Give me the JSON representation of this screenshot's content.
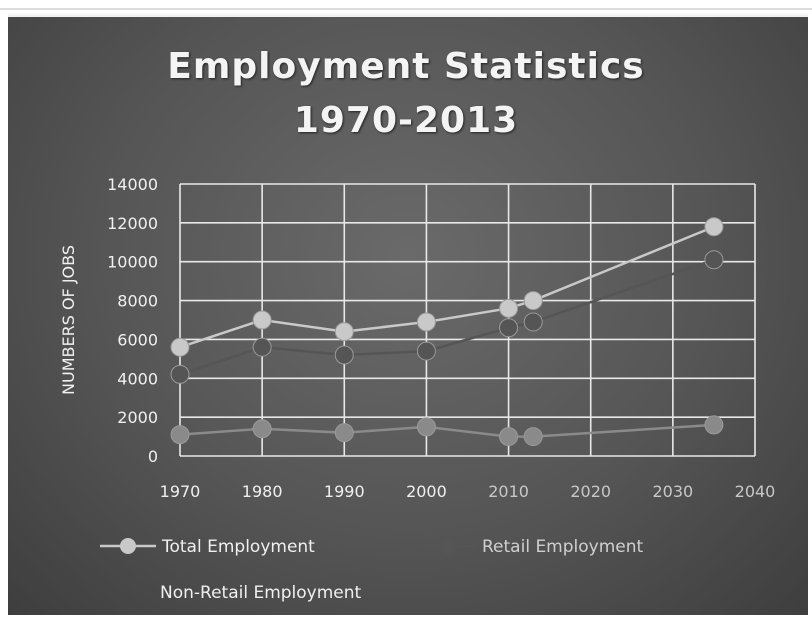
{
  "chart_data": {
    "type": "line",
    "title": "Employment Statistics",
    "subtitle": "1970-2013",
    "xlabel": "",
    "ylabel": "NUMBERS OF JOBS",
    "xlim": [
      1970,
      2040
    ],
    "ylim": [
      0,
      14000
    ],
    "xticks": [
      "1970",
      "1980",
      "1990",
      "2000",
      "2010",
      "2020",
      "2030",
      "2040"
    ],
    "yticks": [
      "14000",
      "12000",
      "10000",
      "8000",
      "6000",
      "4000",
      "2000",
      "0"
    ],
    "grid": true,
    "legend_position": "bottom",
    "series": [
      {
        "name": "Total Employment",
        "color": "#c9c9c9",
        "x": [
          1970,
          1980,
          1990,
          2000,
          2010,
          2013,
          2035
        ],
        "y": [
          5600,
          7000,
          6400,
          6900,
          7600,
          8000,
          11800
        ]
      },
      {
        "name": "Retail Employment",
        "color": "#555555",
        "x": [
          1970,
          1980,
          1990,
          2000,
          2010,
          2013,
          2035
        ],
        "y": [
          4200,
          5600,
          5200,
          5400,
          6600,
          6900,
          10100
        ]
      },
      {
        "name": "Non-Retail Employment",
        "color": "#8a8a8a",
        "x": [
          1970,
          1980,
          1990,
          2000,
          2010,
          2013,
          2035
        ],
        "y": [
          1100,
          1400,
          1200,
          1500,
          1000,
          1000,
          1600
        ]
      }
    ]
  }
}
